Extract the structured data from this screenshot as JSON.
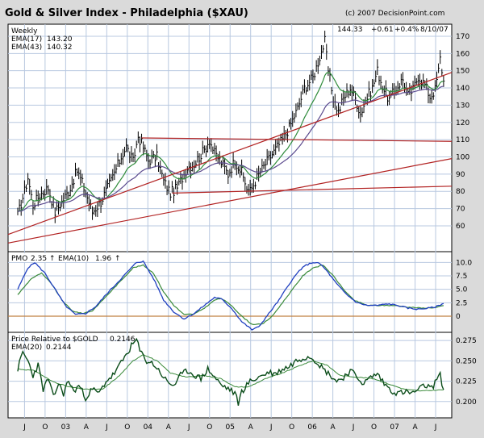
{
  "chart_data": {
    "type": "line",
    "title": "Gold & Silver Index - Philadelphia ($XAU)",
    "copyright": "(c) 2007 DecisionPoint.com",
    "x_labels": [
      "J",
      "O",
      "03",
      "A",
      "J",
      "O",
      "04",
      "A",
      "J",
      "O",
      "05",
      "A",
      "J",
      "O",
      "06",
      "A",
      "J",
      "O",
      "07",
      "A",
      "J"
    ],
    "colors": {
      "price": "#000000",
      "ema17": "#2e8b3a",
      "ema43": "#5b4a8e",
      "trendline": "#b22222",
      "pmo": "#2040c0",
      "pmo_signal": "#3a8a3a",
      "relative": "#0b4d1a",
      "relative_ema": "#3a8a3a",
      "zero_line": "#c08040"
    },
    "panels": [
      {
        "name": "price",
        "period_label": "Weekly",
        "last_price": "144.33",
        "change": "+0.61",
        "change_pct": "+0.4%",
        "date": "8/10/07",
        "ylim": [
          45,
          177
        ],
        "yticks": [
          60,
          70,
          80,
          90,
          100,
          110,
          120,
          130,
          140,
          150,
          160,
          170
        ],
        "legend": [
          {
            "label": "EMA(17)",
            "value": "143.20"
          },
          {
            "label": "EMA(43)",
            "value": "140.32"
          }
        ],
        "price_keypoints": [
          [
            0,
            66
          ],
          [
            4,
            80
          ],
          [
            6,
            88
          ],
          [
            9,
            72
          ],
          [
            13,
            78
          ],
          [
            18,
            82
          ],
          [
            22,
            68
          ],
          [
            26,
            74
          ],
          [
            30,
            80
          ],
          [
            35,
            92
          ],
          [
            38,
            85
          ],
          [
            44,
            68
          ],
          [
            49,
            74
          ],
          [
            55,
            86
          ],
          [
            61,
            100
          ],
          [
            64,
            106
          ],
          [
            68,
            97
          ],
          [
            71,
            112
          ],
          [
            73,
            108
          ],
          [
            77,
            98
          ],
          [
            82,
            100
          ],
          [
            86,
            86
          ],
          [
            90,
            79
          ],
          [
            94,
            82
          ],
          [
            100,
            94
          ],
          [
            104,
            96
          ],
          [
            110,
            104
          ],
          [
            113,
            110
          ],
          [
            116,
            102
          ],
          [
            120,
            97
          ],
          [
            124,
            90
          ],
          [
            128,
            98
          ],
          [
            132,
            91
          ],
          [
            135,
            82
          ],
          [
            137,
            80
          ],
          [
            141,
            88
          ],
          [
            146,
            96
          ],
          [
            151,
            103
          ],
          [
            156,
            110
          ],
          [
            160,
            117
          ],
          [
            165,
            128
          ],
          [
            169,
            140
          ],
          [
            174,
            146
          ],
          [
            178,
            158
          ],
          [
            181,
            167
          ],
          [
            183,
            150
          ],
          [
            186,
            134
          ],
          [
            189,
            126
          ],
          [
            192,
            134
          ],
          [
            196,
            140
          ],
          [
            199,
            134
          ],
          [
            202,
            125
          ],
          [
            205,
            133
          ],
          [
            209,
            140
          ],
          [
            212,
            150
          ],
          [
            215,
            141
          ],
          [
            219,
            133
          ],
          [
            223,
            140
          ],
          [
            227,
            145
          ],
          [
            230,
            136
          ],
          [
            233,
            139
          ],
          [
            236,
            147
          ],
          [
            240,
            142
          ],
          [
            243,
            135
          ],
          [
            246,
            139
          ],
          [
            248,
            150
          ],
          [
            249,
            157
          ],
          [
            251,
            144
          ]
        ],
        "trendlines": [
          [
            [
              0,
              55
            ],
            [
              260,
              149
            ]
          ],
          [
            [
              73,
              111
            ],
            [
              260,
              109
            ]
          ],
          [
            [
              91,
              79
            ],
            [
              260,
              83
            ]
          ],
          [
            [
              0,
              50
            ],
            [
              260,
              99
            ]
          ]
        ]
      },
      {
        "name": "pmo",
        "label": "PMO",
        "pmo_value": "2.35",
        "signal_label": "EMA(10)",
        "signal_value": "1.96",
        "ylim": [
          -3,
          12
        ],
        "yticks": [
          0,
          2.5,
          5.0,
          7.5,
          10.0
        ],
        "ytick_labels": [
          "0",
          "2.5",
          "5.0",
          "7.5",
          "10.0"
        ],
        "pmo_keypoints": [
          [
            0,
            5
          ],
          [
            6,
            9
          ],
          [
            10,
            10
          ],
          [
            16,
            8
          ],
          [
            22,
            5
          ],
          [
            28,
            2
          ],
          [
            34,
            0.3
          ],
          [
            40,
            0.5
          ],
          [
            46,
            1.8
          ],
          [
            52,
            4
          ],
          [
            58,
            6
          ],
          [
            64,
            8
          ],
          [
            70,
            10
          ],
          [
            74,
            10.2
          ],
          [
            80,
            7
          ],
          [
            86,
            3
          ],
          [
            92,
            0.8
          ],
          [
            98,
            -0.5
          ],
          [
            104,
            0.5
          ],
          [
            110,
            2
          ],
          [
            116,
            3.5
          ],
          [
            120,
            3.2
          ],
          [
            126,
            1.5
          ],
          [
            132,
            -1
          ],
          [
            138,
            -2.5
          ],
          [
            142,
            -2
          ],
          [
            148,
            0.5
          ],
          [
            154,
            3
          ],
          [
            160,
            6
          ],
          [
            166,
            8.5
          ],
          [
            170,
            9.5
          ],
          [
            174,
            10
          ],
          [
            178,
            9.8
          ],
          [
            182,
            8.5
          ],
          [
            188,
            6
          ],
          [
            194,
            4
          ],
          [
            200,
            2.5
          ],
          [
            206,
            2
          ],
          [
            212,
            2
          ],
          [
            218,
            2.3
          ],
          [
            224,
            2
          ],
          [
            230,
            1.5
          ],
          [
            236,
            1.3
          ],
          [
            242,
            1.5
          ],
          [
            246,
            1.7
          ],
          [
            251,
            2.35
          ]
        ],
        "signal_keypoints": [
          [
            0,
            4
          ],
          [
            8,
            7
          ],
          [
            14,
            8
          ],
          [
            20,
            6
          ],
          [
            26,
            3
          ],
          [
            32,
            1
          ],
          [
            38,
            0.5
          ],
          [
            44,
            1
          ],
          [
            50,
            3
          ],
          [
            56,
            5
          ],
          [
            62,
            7
          ],
          [
            68,
            9
          ],
          [
            74,
            9.5
          ],
          [
            80,
            8
          ],
          [
            86,
            4.5
          ],
          [
            92,
            2
          ],
          [
            98,
            0.3
          ],
          [
            104,
            0.4
          ],
          [
            110,
            1.5
          ],
          [
            116,
            3
          ],
          [
            120,
            3.3
          ],
          [
            126,
            2
          ],
          [
            132,
            0
          ],
          [
            138,
            -1.5
          ],
          [
            144,
            -1.5
          ],
          [
            150,
            0
          ],
          [
            156,
            2.5
          ],
          [
            162,
            5
          ],
          [
            168,
            7.5
          ],
          [
            174,
            9
          ],
          [
            180,
            9.5
          ],
          [
            186,
            7.5
          ],
          [
            192,
            5
          ],
          [
            198,
            3
          ],
          [
            206,
            2
          ],
          [
            214,
            2
          ],
          [
            222,
            2
          ],
          [
            230,
            1.7
          ],
          [
            238,
            1.5
          ],
          [
            246,
            1.6
          ],
          [
            251,
            1.96
          ]
        ]
      },
      {
        "name": "relative",
        "label": "Price Relative to $GOLD",
        "value": "0.2146",
        "ema_label": "EMA(20)",
        "ema_value": "0.2144",
        "ylim": [
          0.18,
          0.285
        ],
        "yticks": [
          0.2,
          0.225,
          0.25,
          0.275
        ],
        "ytick_labels": [
          "0.200",
          "0.225",
          "0.250",
          "0.275"
        ],
        "rel_keypoints": [
          [
            0,
            0.24
          ],
          [
            3,
            0.26
          ],
          [
            6,
            0.25
          ],
          [
            9,
            0.232
          ],
          [
            12,
            0.245
          ],
          [
            15,
            0.215
          ],
          [
            18,
            0.228
          ],
          [
            21,
            0.205
          ],
          [
            24,
            0.222
          ],
          [
            27,
            0.21
          ],
          [
            30,
            0.226
          ],
          [
            33,
            0.212
          ],
          [
            36,
            0.22
          ],
          [
            40,
            0.205
          ],
          [
            44,
            0.215
          ],
          [
            48,
            0.21
          ],
          [
            52,
            0.225
          ],
          [
            56,
            0.232
          ],
          [
            60,
            0.244
          ],
          [
            64,
            0.258
          ],
          [
            67,
            0.268
          ],
          [
            70,
            0.276
          ],
          [
            72,
            0.262
          ],
          [
            76,
            0.25
          ],
          [
            80,
            0.246
          ],
          [
            84,
            0.236
          ],
          [
            88,
            0.224
          ],
          [
            92,
            0.22
          ],
          [
            96,
            0.232
          ],
          [
            100,
            0.238
          ],
          [
            104,
            0.233
          ],
          [
            108,
            0.228
          ],
          [
            112,
            0.24
          ],
          [
            116,
            0.23
          ],
          [
            120,
            0.22
          ],
          [
            124,
            0.216
          ],
          [
            128,
            0.21
          ],
          [
            130,
            0.198
          ],
          [
            132,
            0.212
          ],
          [
            136,
            0.223
          ],
          [
            140,
            0.228
          ],
          [
            144,
            0.232
          ],
          [
            148,
            0.236
          ],
          [
            152,
            0.234
          ],
          [
            156,
            0.24
          ],
          [
            160,
            0.243
          ],
          [
            164,
            0.25
          ],
          [
            168,
            0.254
          ],
          [
            172,
            0.256
          ],
          [
            176,
            0.25
          ],
          [
            180,
            0.24
          ],
          [
            184,
            0.233
          ],
          [
            188,
            0.225
          ],
          [
            192,
            0.23
          ],
          [
            196,
            0.238
          ],
          [
            200,
            0.23
          ],
          [
            204,
            0.222
          ],
          [
            208,
            0.23
          ],
          [
            212,
            0.234
          ],
          [
            216,
            0.222
          ],
          [
            220,
            0.214
          ],
          [
            224,
            0.21
          ],
          [
            228,
            0.212
          ],
          [
            232,
            0.21
          ],
          [
            236,
            0.214
          ],
          [
            240,
            0.22
          ],
          [
            244,
            0.216
          ],
          [
            247,
            0.228
          ],
          [
            249,
            0.232
          ],
          [
            251,
            0.2146
          ]
        ],
        "ema_keypoints": [
          [
            0,
            0.24
          ],
          [
            10,
            0.238
          ],
          [
            20,
            0.225
          ],
          [
            30,
            0.218
          ],
          [
            40,
            0.215
          ],
          [
            50,
            0.215
          ],
          [
            60,
            0.232
          ],
          [
            68,
            0.25
          ],
          [
            74,
            0.258
          ],
          [
            82,
            0.25
          ],
          [
            90,
            0.235
          ],
          [
            100,
            0.23
          ],
          [
            110,
            0.232
          ],
          [
            120,
            0.228
          ],
          [
            128,
            0.218
          ],
          [
            136,
            0.218
          ],
          [
            146,
            0.228
          ],
          [
            156,
            0.235
          ],
          [
            166,
            0.244
          ],
          [
            174,
            0.25
          ],
          [
            182,
            0.245
          ],
          [
            190,
            0.232
          ],
          [
            200,
            0.23
          ],
          [
            210,
            0.228
          ],
          [
            218,
            0.222
          ],
          [
            228,
            0.215
          ],
          [
            238,
            0.213
          ],
          [
            246,
            0.214
          ],
          [
            251,
            0.2144
          ]
        ]
      }
    ]
  }
}
